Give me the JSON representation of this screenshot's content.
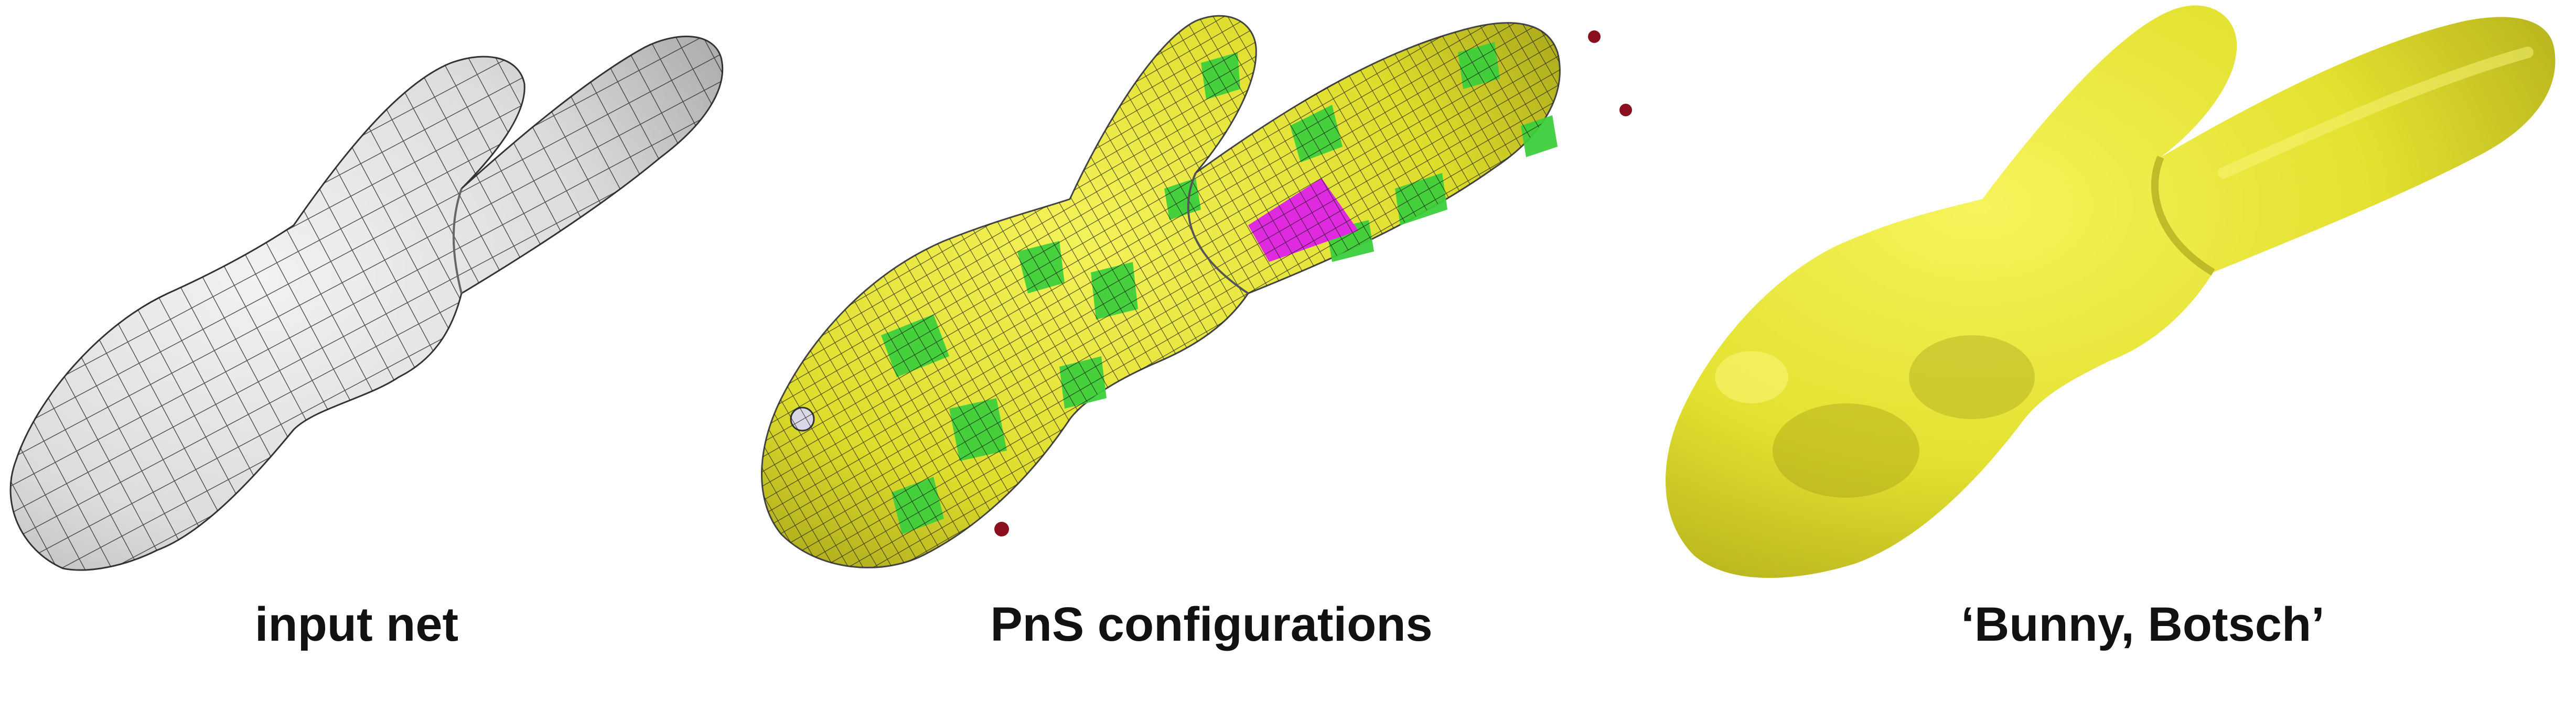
{
  "captions": {
    "input": "input net",
    "configurations": "PnS configurations",
    "result": "‘Bunny, Botsch’"
  },
  "colors": {
    "mesh_gray": "#e6e6e6",
    "surface_yellow": "#e8e630",
    "patch_green": "#3ccf3c",
    "patch_magenta": "#e02ae0",
    "patch_red": "#8a1020",
    "wire": "#1a1a1a"
  }
}
